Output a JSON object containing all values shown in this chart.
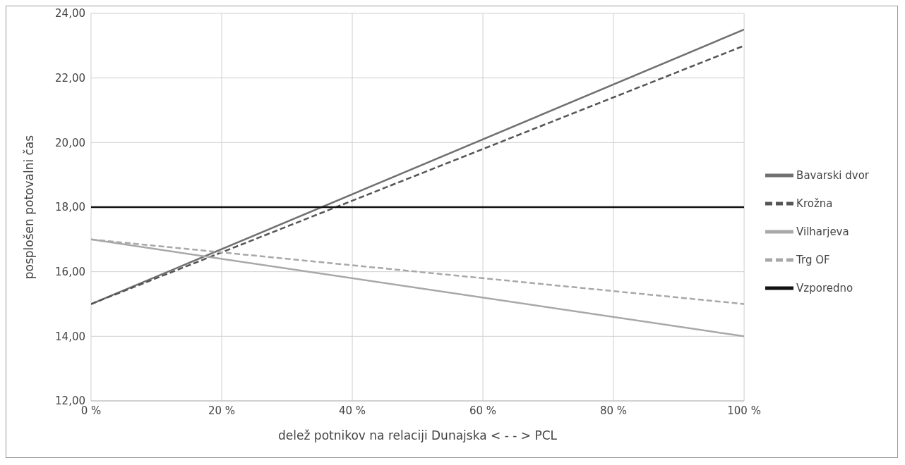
{
  "chart_data": {
    "type": "line",
    "xlabel": "delež potnikov na relaciji Dunajska < - - > PCL",
    "ylabel": "posplošen potovalni čas",
    "x": [
      0,
      100
    ],
    "series": [
      {
        "name": "Bavarski dvor",
        "color": "#707070",
        "line_style": "solid",
        "values": [
          15,
          23.5
        ]
      },
      {
        "name": "Krožna",
        "color": "#555555",
        "line_style": "dashed",
        "values": [
          15,
          23
        ]
      },
      {
        "name": "Vilharjeva",
        "color": "#a8a8a8",
        "line_style": "solid",
        "values": [
          17,
          14
        ]
      },
      {
        "name": "Trg OF",
        "color": "#a8a8a8",
        "line_style": "dashed",
        "values": [
          17,
          15
        ]
      },
      {
        "name": "Vzporedno",
        "color": "#111111",
        "line_style": "solid",
        "values": [
          18,
          18
        ]
      }
    ],
    "xlim": [
      0,
      100
    ],
    "xticks": [
      {
        "value": 0,
        "label": "0 %"
      },
      {
        "value": 20,
        "label": "20 %"
      },
      {
        "value": 40,
        "label": "40 %"
      },
      {
        "value": 60,
        "label": "60 %"
      },
      {
        "value": 80,
        "label": "80 %"
      },
      {
        "value": 100,
        "label": "100 %"
      }
    ],
    "ylim": [
      12,
      24
    ],
    "yticks": [
      {
        "value": 12,
        "label": "12,00"
      },
      {
        "value": 14,
        "label": "14,00"
      },
      {
        "value": 16,
        "label": "16,00"
      },
      {
        "value": 18,
        "label": "18,00"
      },
      {
        "value": 20,
        "label": "20,00"
      },
      {
        "value": 22,
        "label": "22,00"
      },
      {
        "value": 24,
        "label": "24,00"
      }
    ],
    "grid": true,
    "legend": "right",
    "marker": "none"
  }
}
